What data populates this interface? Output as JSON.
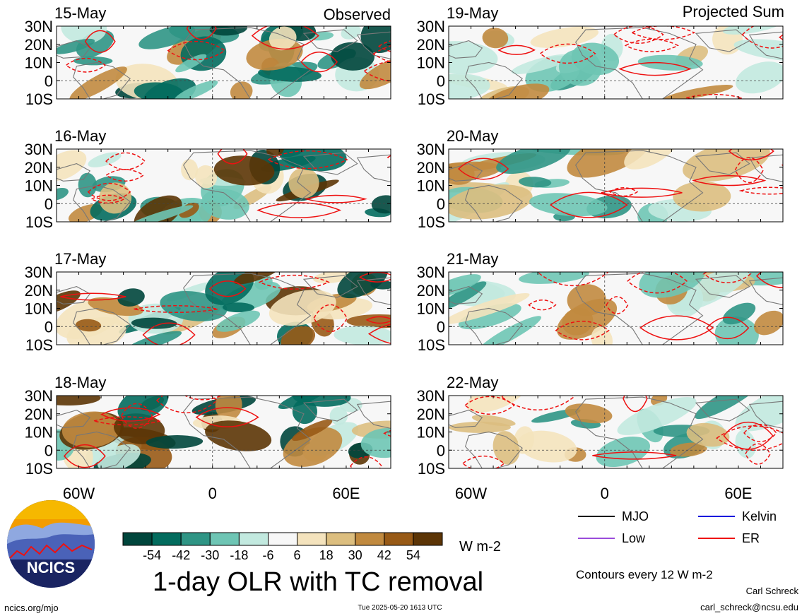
{
  "chart_data": {
    "type": "heatmap",
    "title": "1-day OLR with TC removal",
    "unit": "W m-2",
    "columns": [
      {
        "label": "Observed",
        "panels": [
          "15-May",
          "16-May",
          "17-May",
          "18-May"
        ]
      },
      {
        "label": "Projected Sum",
        "panels": [
          "19-May",
          "20-May",
          "21-May",
          "22-May"
        ]
      }
    ],
    "lat_ticks": [
      "30N",
      "20N",
      "10N",
      "0",
      "10S"
    ],
    "lon_ticks": [
      "60W",
      "0",
      "60E"
    ],
    "colorbar": {
      "tick_labels": [
        "-54",
        "-42",
        "-30",
        "-18",
        "-6",
        "6",
        "18",
        "30",
        "42",
        "54"
      ],
      "colors": [
        "#00463c",
        "#036c5e",
        "#2f9585",
        "#6ec5b4",
        "#c2e9df",
        "#f7f7f7",
        "#f4e3bd",
        "#dcbe7f",
        "#c18a3f",
        "#985a16",
        "#5c3506"
      ]
    },
    "contour_legend": [
      {
        "name": "MJO",
        "color": "#000000"
      },
      {
        "name": "Kelvin",
        "color": "#0000dd"
      },
      {
        "name": "Low",
        "color": "#9a4cdb"
      },
      {
        "name": "ER",
        "color": "#ee1111"
      }
    ],
    "contour_note": "Contours every 12 W m-2"
  },
  "footer": {
    "site": "ncics.org/mjo",
    "timestamp": "Tue 2025-05-20 1613 UTC",
    "author": "Carl Schreck",
    "email": "carl_schreck@ncsu.edu"
  },
  "logo": {
    "text": "NCICS"
  }
}
